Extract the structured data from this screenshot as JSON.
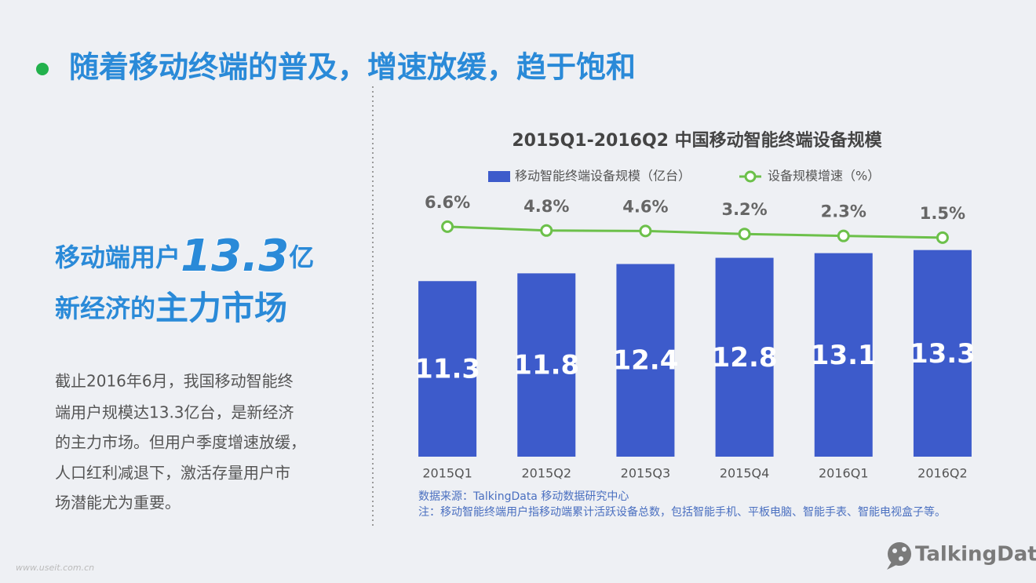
{
  "page": {
    "title": "随着移动终端的普及，增速放缓，趋于饱和",
    "headline": {
      "line1": [
        "移动端用户",
        "13.3",
        "亿"
      ],
      "line2": [
        "新经济的",
        "主力市场"
      ]
    },
    "paragraph": [
      "截止2016年6月，我国移动智能终",
      "端用户规模达13.3亿台，是新经济",
      "的主力市场。但用户季度增速放缓，",
      "人口红利减退下，激活存量用户市",
      "场潜能尤为重要。"
    ],
    "logo": "TalkingData",
    "watermark": "www.useit.com.cn"
  },
  "chart_data": {
    "type": "bar",
    "title": "2015Q1-2016Q2 中国移动智能终端设备规模",
    "categories": [
      "2015Q1",
      "2015Q2",
      "2015Q3",
      "2015Q4",
      "2016Q1",
      "2016Q2"
    ],
    "series": [
      {
        "name": "移动智能终端设备规模（亿台）",
        "type": "bar",
        "color": "#3d5bcb",
        "values": [
          11.3,
          11.8,
          12.4,
          12.8,
          13.1,
          13.3
        ]
      },
      {
        "name": "设备规模增速（%）",
        "type": "line",
        "axis": "y2",
        "color": "#6cc04a",
        "values": [
          6.6,
          4.8,
          4.6,
          3.2,
          2.3,
          1.5
        ],
        "value_labels": [
          "6.6%",
          "4.8%",
          "4.6%",
          "3.2%",
          "2.3%",
          "1.5%"
        ]
      }
    ],
    "ylim": [
      0,
      15
    ],
    "y2lim": [
      0,
      40
    ],
    "legend": "top",
    "source": "数据来源：TalkingData 移动数据研究中心",
    "note": "注：移动智能终端用户指移动端累计活跃设备总数，包括智能手机、平板电脑、智能手表、智能电视盒子等。"
  }
}
